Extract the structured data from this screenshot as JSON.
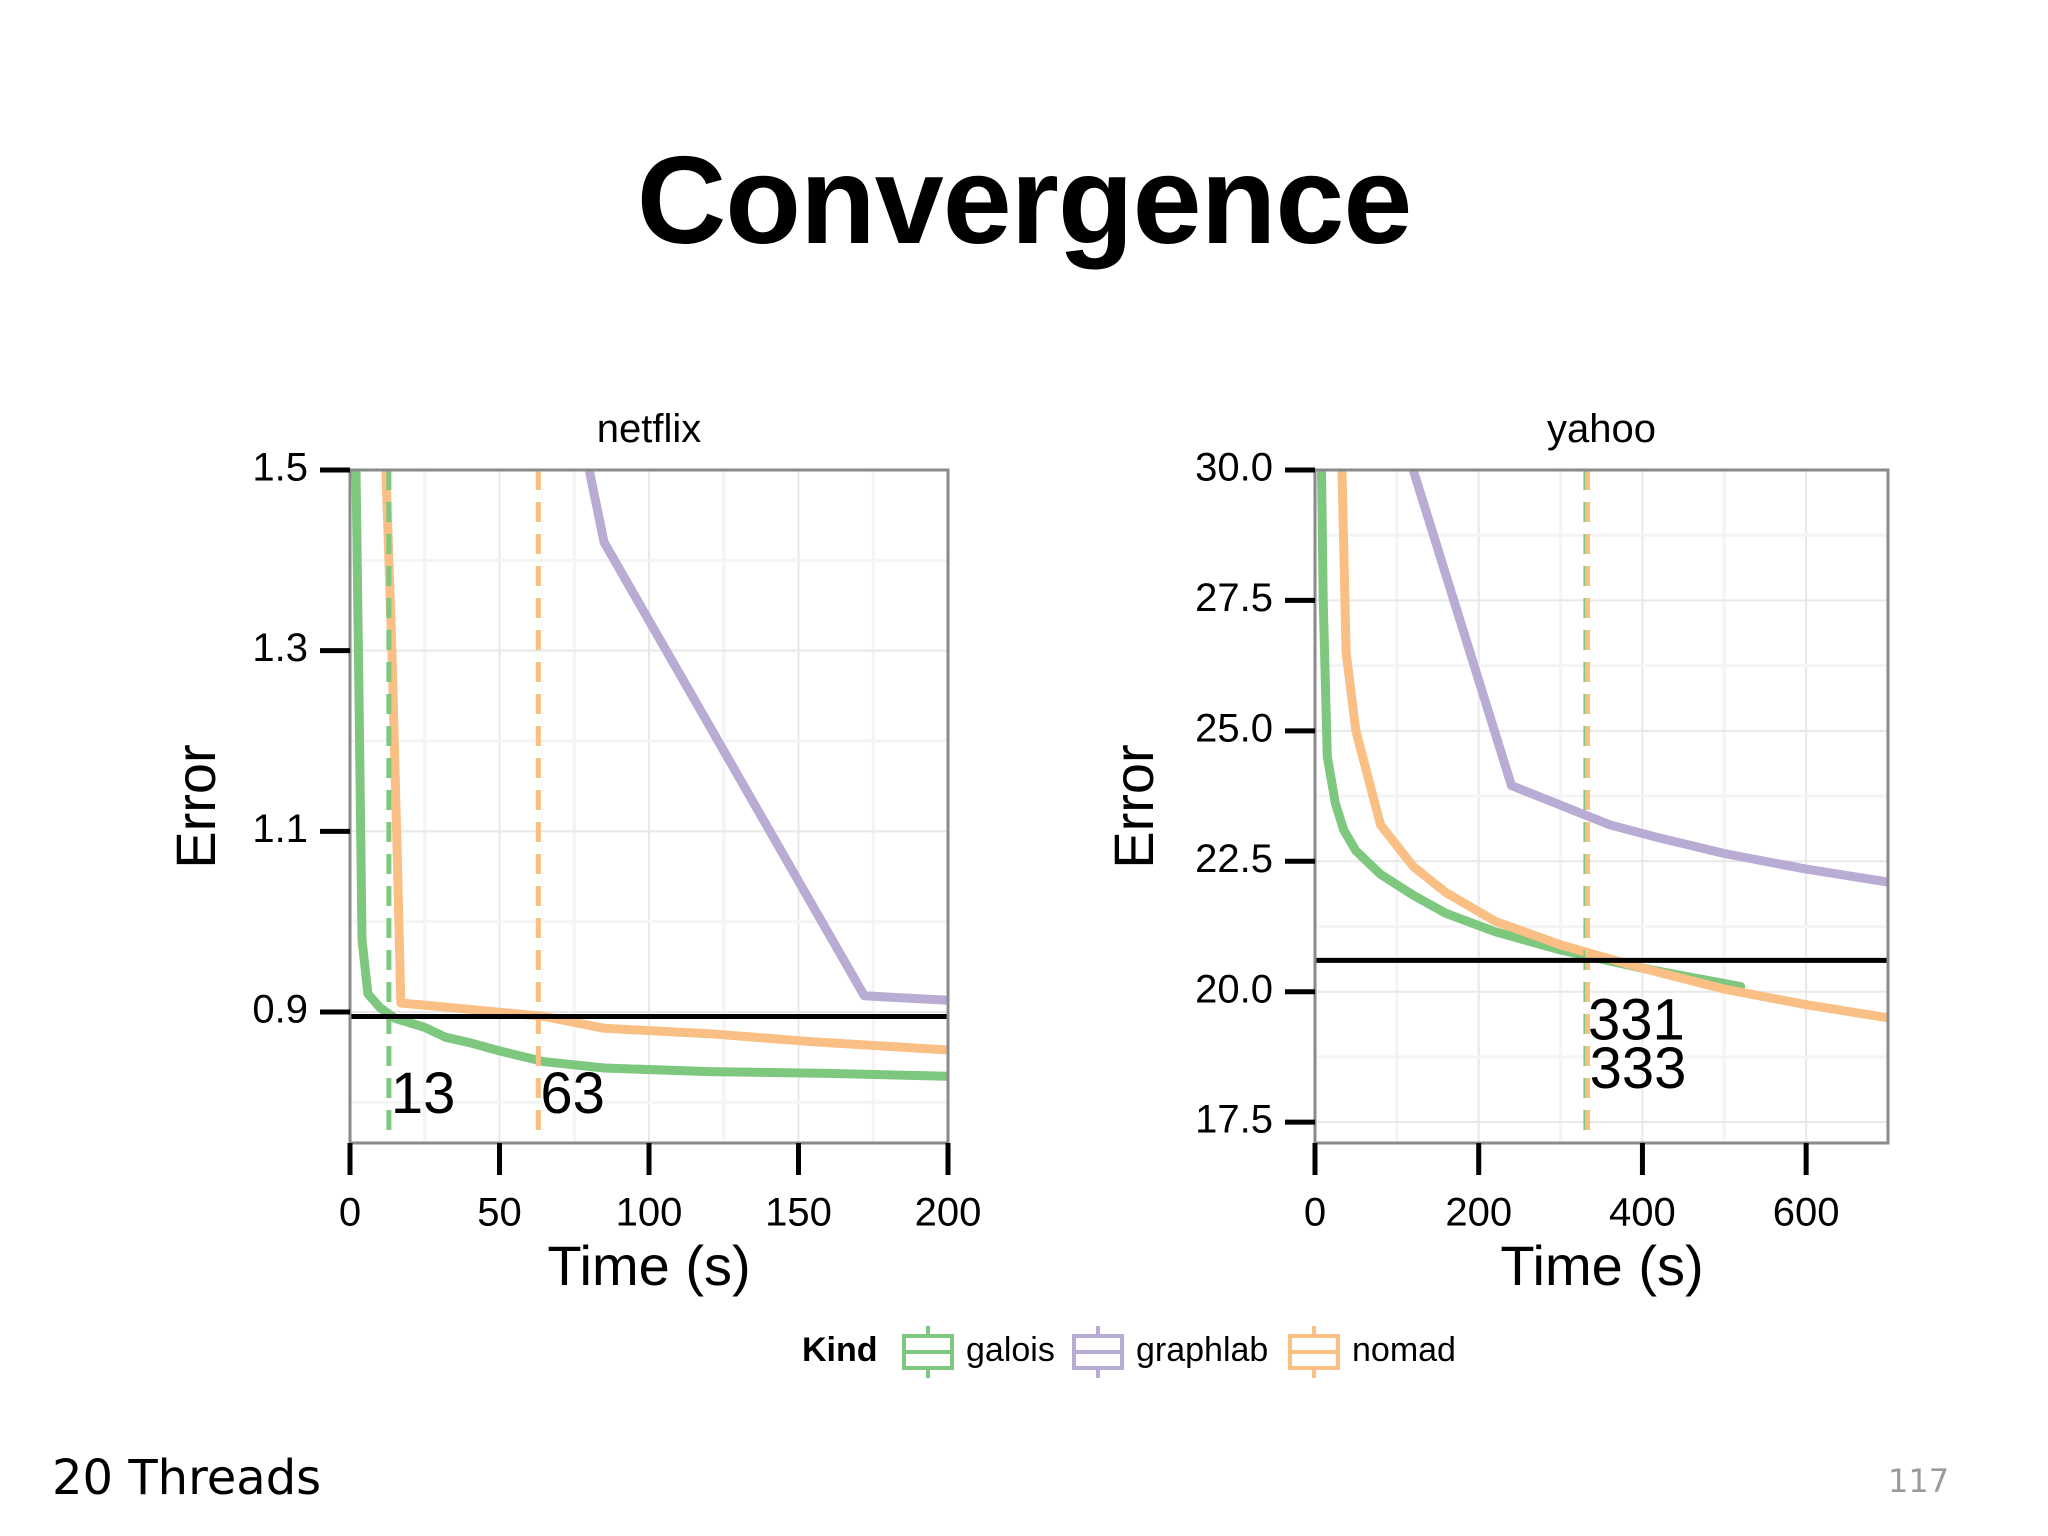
{
  "slide": {
    "title": "Convergence",
    "footer_text": "20 Threads",
    "page_number": "117"
  },
  "legend": {
    "title": "Kind",
    "entries": [
      {
        "name": "galois",
        "color": "#7dc77f"
      },
      {
        "name": "graphlab",
        "color": "#b9acd4"
      },
      {
        "name": "nomad",
        "color": "#f9bf84"
      }
    ]
  },
  "chart_data": [
    {
      "type": "line",
      "title": "netflix",
      "xlabel": "Time (s)",
      "ylabel": "Error",
      "xlim": [
        0,
        200
      ],
      "ylim": [
        0.755,
        1.5
      ],
      "xticks": [
        0,
        50,
        100,
        150,
        200
      ],
      "yticks": [
        0.9,
        1.1,
        1.3,
        1.5
      ],
      "ytick_labels": [
        "0.9",
        "1.1",
        "1.3",
        "1.5"
      ],
      "grid": true,
      "target_line": 0.895,
      "series": [
        {
          "name": "galois",
          "color": "#7dc77f",
          "points": [
            [
              2,
              1.5
            ],
            [
              3,
              1.25
            ],
            [
              4,
              0.98
            ],
            [
              6,
              0.92
            ],
            [
              10,
              0.905
            ],
            [
              15,
              0.893
            ],
            [
              25,
              0.883
            ],
            [
              32,
              0.872
            ],
            [
              40,
              0.866
            ],
            [
              50,
              0.857
            ],
            [
              65,
              0.845
            ],
            [
              85,
              0.838
            ],
            [
              120,
              0.834
            ],
            [
              160,
              0.832
            ],
            [
              200,
              0.829
            ]
          ]
        },
        {
          "name": "graphlab",
          "color": "#b9acd4",
          "points": [
            [
              80,
              1.5
            ],
            [
              85,
              1.42
            ],
            [
              172,
              0.918
            ],
            [
              200,
              0.913
            ]
          ]
        },
        {
          "name": "nomad",
          "color": "#f9bf84",
          "points": [
            [
              12,
              1.5
            ],
            [
              14,
              1.3
            ],
            [
              16,
              1.05
            ],
            [
              17,
              0.91
            ],
            [
              40,
              0.903
            ],
            [
              65,
              0.895
            ],
            [
              85,
              0.882
            ],
            [
              120,
              0.876
            ],
            [
              155,
              0.867
            ],
            [
              200,
              0.858
            ]
          ]
        }
      ],
      "vlines": [
        {
          "series": "galois",
          "x": 13,
          "label": "13",
          "label_y": 0.805
        },
        {
          "series": "nomad",
          "x": 63,
          "label": "63",
          "label_y": 0.805
        }
      ]
    },
    {
      "type": "line",
      "title": "yahoo",
      "xlabel": "Time (s)",
      "ylabel": "Error",
      "xlim": [
        0,
        700
      ],
      "ylim": [
        17.1,
        30.0
      ],
      "xticks": [
        0,
        200,
        400,
        600
      ],
      "yticks": [
        17.5,
        20.0,
        22.5,
        25.0,
        27.5,
        30.0
      ],
      "ytick_labels": [
        "17.5",
        "20.0",
        "22.5",
        "25.0",
        "27.5",
        "30.0"
      ],
      "grid": true,
      "target_line": 20.6,
      "series": [
        {
          "name": "galois",
          "color": "#7dc77f",
          "points": [
            [
              8,
              30.0
            ],
            [
              10,
              27.5
            ],
            [
              15,
              24.5
            ],
            [
              25,
              23.6
            ],
            [
              35,
              23.1
            ],
            [
              50,
              22.7
            ],
            [
              80,
              22.25
            ],
            [
              120,
              21.85
            ],
            [
              160,
              21.5
            ],
            [
              220,
              21.15
            ],
            [
              300,
              20.8
            ],
            [
              400,
              20.45
            ],
            [
              520,
              20.1
            ]
          ]
        },
        {
          "name": "graphlab",
          "color": "#b9acd4",
          "points": [
            [
              120,
              30.0
            ],
            [
              240,
              23.95
            ],
            [
              360,
              23.2
            ],
            [
              420,
              22.95
            ],
            [
              500,
              22.65
            ],
            [
              600,
              22.35
            ],
            [
              700,
              22.1
            ]
          ]
        },
        {
          "name": "nomad",
          "color": "#f9bf84",
          "points": [
            [
              33,
              30.0
            ],
            [
              38,
              26.5
            ],
            [
              50,
              25.0
            ],
            [
              80,
              23.2
            ],
            [
              120,
              22.4
            ],
            [
              160,
              21.9
            ],
            [
              220,
              21.35
            ],
            [
              300,
              20.9
            ],
            [
              400,
              20.45
            ],
            [
              500,
              20.05
            ],
            [
              600,
              19.75
            ],
            [
              700,
              19.5
            ]
          ]
        }
      ],
      "vlines": [
        {
          "series": "galois",
          "x": 331,
          "label": "331",
          "label_y": 19.38
        },
        {
          "series": "nomad",
          "x": 333,
          "label": "333",
          "label_y": 18.45
        }
      ]
    }
  ]
}
